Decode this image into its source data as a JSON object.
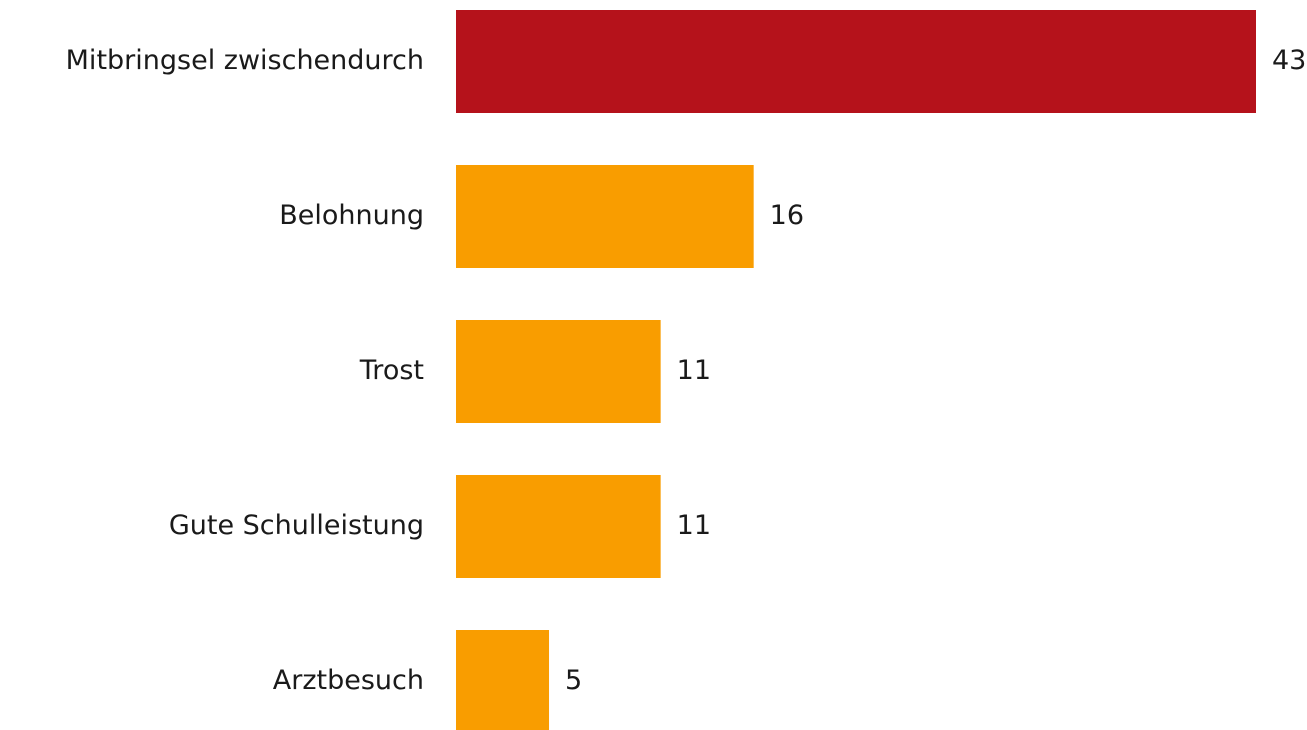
{
  "chart_data": {
    "type": "bar",
    "orientation": "horizontal",
    "categories": [
      "Mitbringsel zwischendurch",
      "Belohnung",
      "Trost",
      "Gute Schulleistung",
      "Arztbesuch"
    ],
    "values": [
      43,
      16,
      11,
      11,
      5
    ],
    "colors": [
      "#b5121b",
      "#f99d00",
      "#f99d00",
      "#f99d00",
      "#f99d00"
    ]
  }
}
